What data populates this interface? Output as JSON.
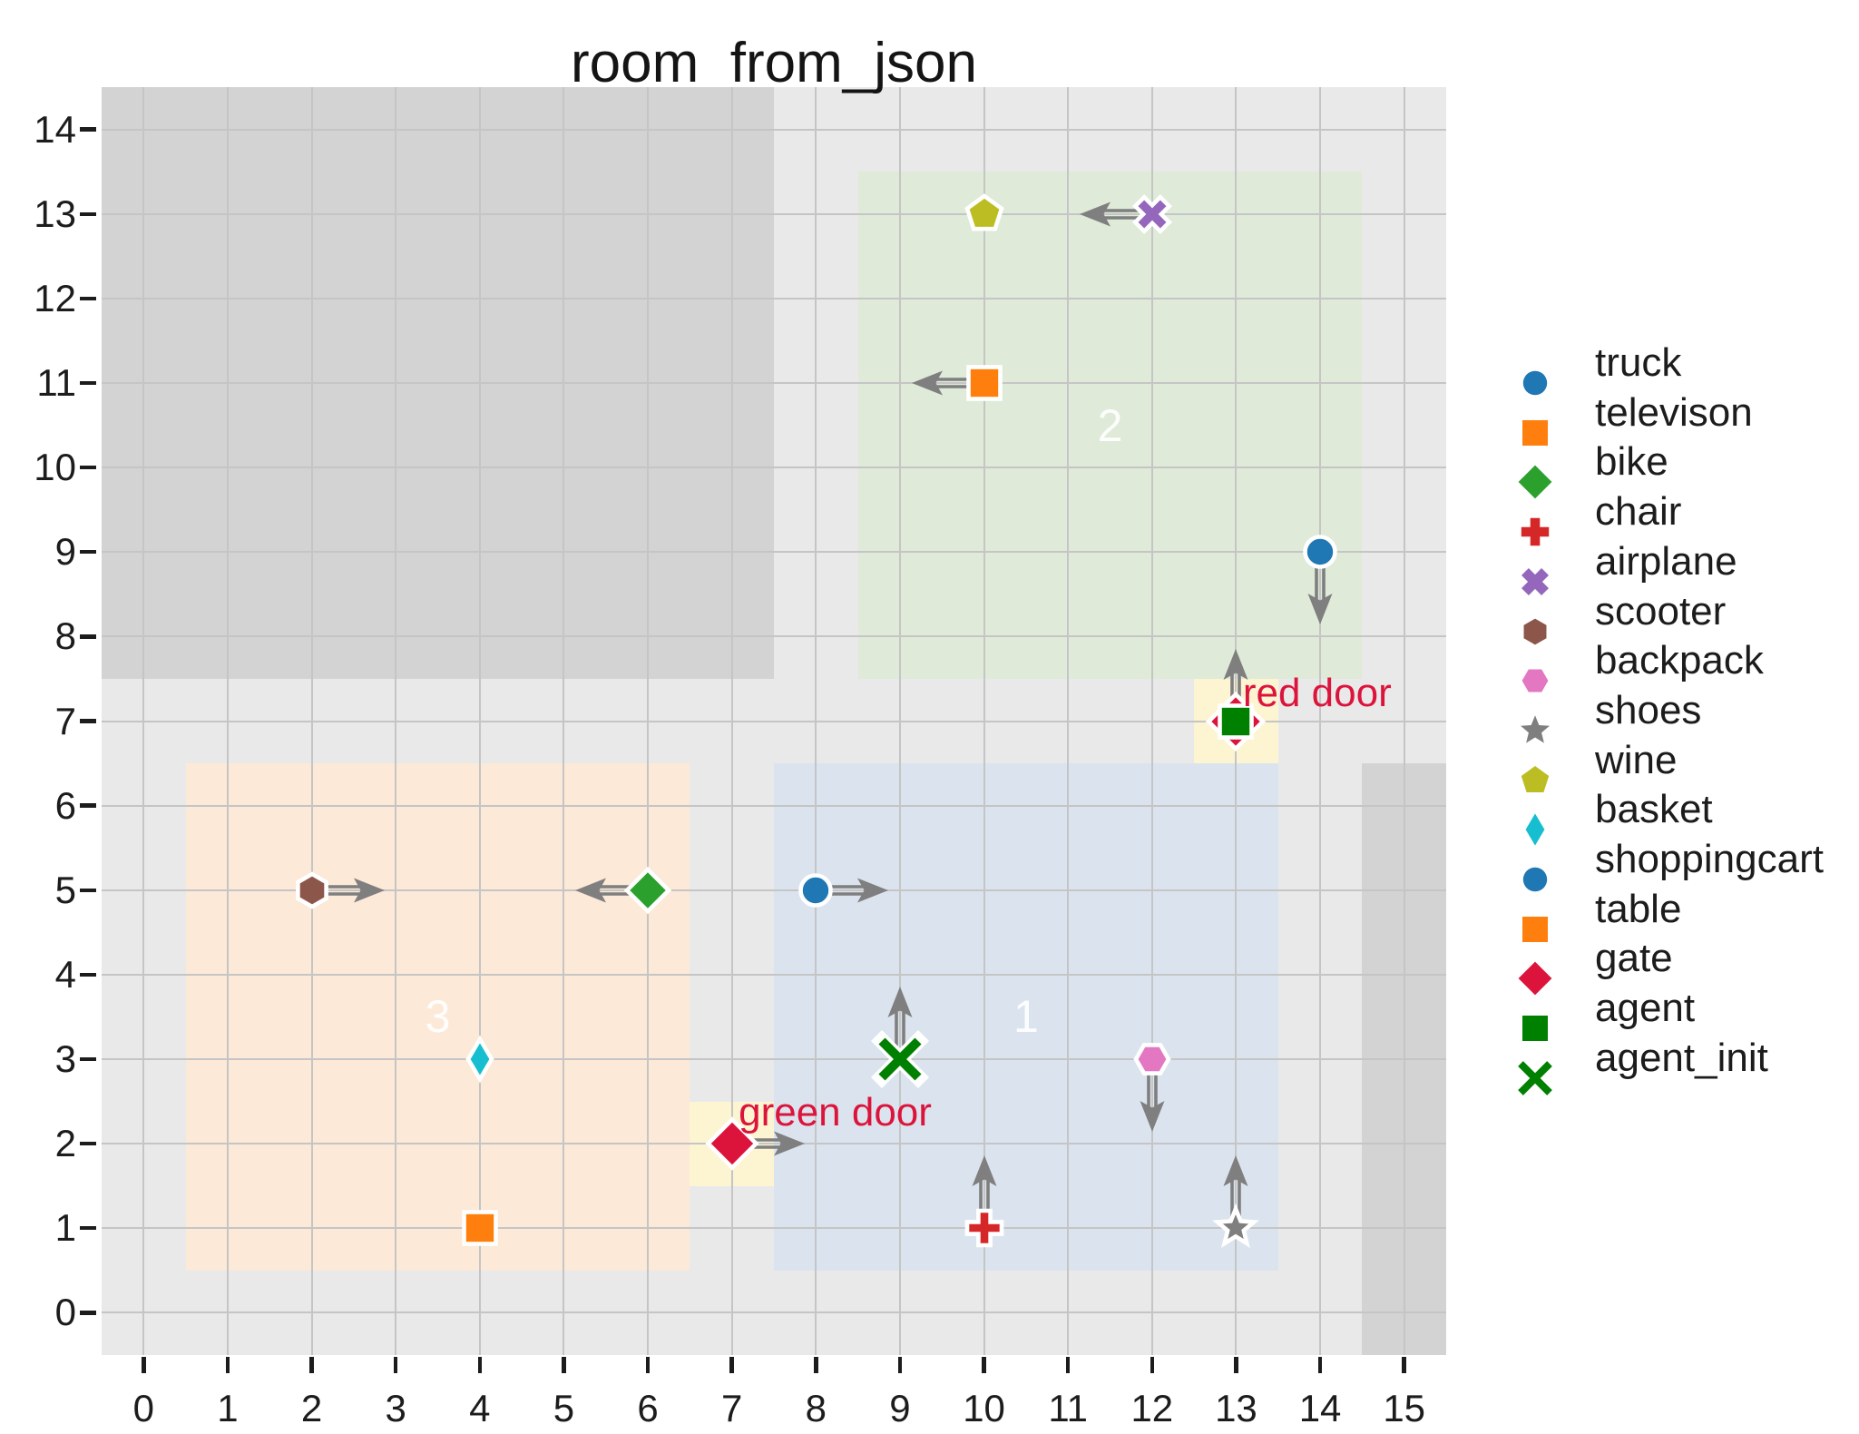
{
  "window": {
    "background": "#ffffff"
  },
  "chart_data": {
    "type": "scatter",
    "title": "room_from_json",
    "xlabel": "",
    "ylabel": "",
    "xlim": [
      -0.5,
      15.5
    ],
    "ylim": [
      -0.5,
      14.5
    ],
    "xticks": [
      0,
      1,
      2,
      3,
      4,
      5,
      6,
      7,
      8,
      9,
      10,
      11,
      12,
      13,
      14,
      15
    ],
    "yticks": [
      0,
      1,
      2,
      3,
      4,
      5,
      6,
      7,
      8,
      9,
      10,
      11,
      12,
      13,
      14
    ],
    "grid": true,
    "legend_position": "right-outside",
    "colors": {
      "axes_background": "#e9e9e9",
      "wall": "#d3d3d3",
      "grid": "#c5c5c5",
      "arrow": "#7f7f7f",
      "door_cell": "#fdf4d2",
      "door_text": "#dc143c",
      "tick_text": "#1c1c1c",
      "region_label_text": "#ffffff"
    },
    "regions": [
      {
        "name": "wall-top-left",
        "x0": -0.5,
        "y0": 7.5,
        "x1": 7.5,
        "y1": 14.5,
        "color": "#d3d3d3",
        "label": ""
      },
      {
        "name": "wall-right",
        "x0": 14.5,
        "y0": -0.5,
        "x1": 15.5,
        "y1": 6.5,
        "color": "#d3d3d3",
        "label": ""
      },
      {
        "name": "room-2",
        "x0": 8.5,
        "y0": 7.5,
        "x1": 14.5,
        "y1": 13.5,
        "color": "#dfead9",
        "label": "2"
      },
      {
        "name": "room-3",
        "x0": 0.5,
        "y0": 0.5,
        "x1": 6.5,
        "y1": 6.5,
        "color": "#fce9d7",
        "label": "3"
      },
      {
        "name": "room-1",
        "x0": 7.5,
        "y0": 0.5,
        "x1": 13.5,
        "y1": 6.5,
        "color": "#dbe4ee",
        "label": "1"
      },
      {
        "name": "red-door-cell",
        "x0": 12.5,
        "y0": 6.5,
        "x1": 13.5,
        "y1": 7.5,
        "color": "#fdf4d2",
        "label": ""
      },
      {
        "name": "green-door-cell",
        "x0": 6.5,
        "y0": 1.5,
        "x1": 7.5,
        "y1": 2.5,
        "color": "#fdf4d2",
        "label": ""
      }
    ],
    "door_labels": [
      {
        "text": "red door",
        "x": 13.08,
        "y": 7.33,
        "color": "#dc143c"
      },
      {
        "text": "green door",
        "x": 7.08,
        "y": 2.37,
        "color": "#dc143c"
      }
    ],
    "points": [
      {
        "label": "truck",
        "marker": "circle",
        "color": "#1f77b4",
        "x": 14,
        "y": 9,
        "arrow": "down",
        "scale": 1
      },
      {
        "label": "televison",
        "marker": "square",
        "color": "#ff7f0e",
        "x": 10,
        "y": 11,
        "arrow": "left",
        "scale": 1
      },
      {
        "label": "bike",
        "marker": "diamond",
        "color": "#2ca02c",
        "x": 6,
        "y": 5,
        "arrow": "left",
        "scale": 1
      },
      {
        "label": "chair",
        "marker": "plus",
        "color": "#d62728",
        "x": 10,
        "y": 1,
        "arrow": "up",
        "scale": 1
      },
      {
        "label": "airplane",
        "marker": "x-filled",
        "color": "#9467bd",
        "x": 12,
        "y": 13,
        "arrow": "left",
        "scale": 1
      },
      {
        "label": "scooter",
        "marker": "hexagon-v",
        "color": "#8c564b",
        "x": 2,
        "y": 5,
        "arrow": "right",
        "scale": 1
      },
      {
        "label": "backpack",
        "marker": "hexagon-h",
        "color": "#e377c2",
        "x": 12,
        "y": 3,
        "arrow": "down",
        "scale": 1
      },
      {
        "label": "shoes",
        "marker": "star",
        "color": "#7f7f7f",
        "x": 13,
        "y": 1,
        "arrow": "up",
        "scale": 1
      },
      {
        "label": "wine",
        "marker": "pentagon",
        "color": "#bcbd22",
        "x": 10,
        "y": 13,
        "arrow": null,
        "scale": 1
      },
      {
        "label": "basket",
        "marker": "thin-diamond",
        "color": "#17becf",
        "x": 4,
        "y": 3,
        "arrow": null,
        "scale": 1
      },
      {
        "label": "shoppingcart",
        "marker": "circle",
        "color": "#1f77b4",
        "x": 8,
        "y": 5,
        "arrow": "right",
        "scale": 1
      },
      {
        "label": "table",
        "marker": "square",
        "color": "#ff7f0e",
        "x": 4,
        "y": 1,
        "arrow": null,
        "scale": 1
      },
      {
        "label": "gate",
        "marker": "diamond",
        "color": "#dc143c",
        "x": 7,
        "y": 2,
        "arrow": "right",
        "scale": 1.15
      },
      {
        "label": "red-door-gate",
        "marker": "diamond",
        "color": "#dc143c",
        "x": 13,
        "y": 7,
        "arrow": null,
        "scale": 1.3
      },
      {
        "label": "agent",
        "marker": "square",
        "color": "#008000",
        "x": 13,
        "y": 7,
        "arrow": "up",
        "scale": 1
      },
      {
        "label": "agent_init",
        "marker": "x-stroke",
        "color": "#008000",
        "x": 9,
        "y": 3,
        "arrow": "up",
        "scale": 1
      }
    ],
    "legend": [
      {
        "label": "truck",
        "marker": "circle",
        "color": "#1f77b4"
      },
      {
        "label": "televison",
        "marker": "square",
        "color": "#ff7f0e"
      },
      {
        "label": "bike",
        "marker": "diamond",
        "color": "#2ca02c"
      },
      {
        "label": "chair",
        "marker": "plus",
        "color": "#d62728"
      },
      {
        "label": "airplane",
        "marker": "x-filled",
        "color": "#9467bd"
      },
      {
        "label": "scooter",
        "marker": "hexagon-v",
        "color": "#8c564b"
      },
      {
        "label": "backpack",
        "marker": "hexagon-h",
        "color": "#e377c2"
      },
      {
        "label": "shoes",
        "marker": "star",
        "color": "#7f7f7f"
      },
      {
        "label": "wine",
        "marker": "pentagon",
        "color": "#bcbd22"
      },
      {
        "label": "basket",
        "marker": "thin-diamond",
        "color": "#17becf"
      },
      {
        "label": "shoppingcart",
        "marker": "circle",
        "color": "#1f77b4"
      },
      {
        "label": "table",
        "marker": "square",
        "color": "#ff7f0e"
      },
      {
        "label": "gate",
        "marker": "diamond",
        "color": "#dc143c"
      },
      {
        "label": "agent",
        "marker": "square",
        "color": "#008000"
      },
      {
        "label": "agent_init",
        "marker": "x-stroke",
        "color": "#008000"
      }
    ]
  }
}
